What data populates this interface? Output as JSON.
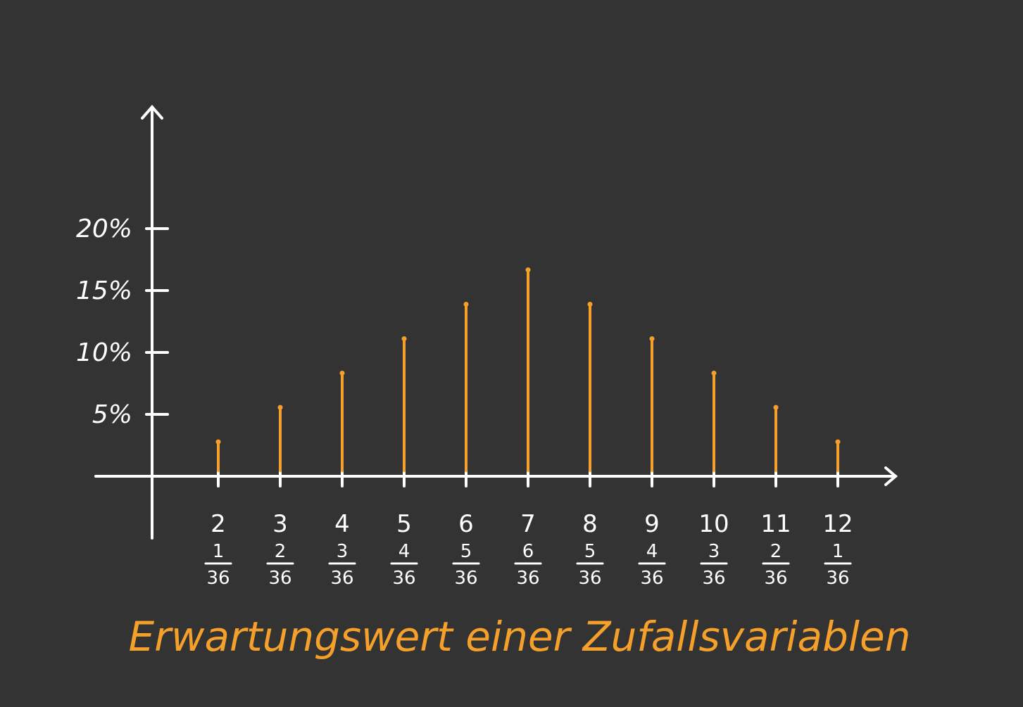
{
  "colors": {
    "background": "#333333",
    "axis": "#ffffff",
    "bar": "#f5a02a",
    "title": "#f5a02a",
    "label": "#ffffff"
  },
  "chart_data": {
    "type": "bar",
    "title": "Erwartungswert einer Zufallsvariablen",
    "xlabel": "",
    "ylabel": "",
    "categories": [
      "2",
      "3",
      "4",
      "5",
      "6",
      "7",
      "8",
      "9",
      "10",
      "11",
      "12"
    ],
    "probabilities": [
      {
        "num": "1",
        "den": "36"
      },
      {
        "num": "2",
        "den": "36"
      },
      {
        "num": "3",
        "den": "36"
      },
      {
        "num": "4",
        "den": "36"
      },
      {
        "num": "5",
        "den": "36"
      },
      {
        "num": "6",
        "den": "36"
      },
      {
        "num": "5",
        "den": "36"
      },
      {
        "num": "4",
        "den": "36"
      },
      {
        "num": "3",
        "den": "36"
      },
      {
        "num": "2",
        "den": "36"
      },
      {
        "num": "1",
        "den": "36"
      }
    ],
    "values": [
      2.78,
      5.56,
      8.33,
      11.11,
      13.89,
      16.67,
      13.89,
      11.11,
      8.33,
      5.56,
      2.78
    ],
    "yticks": [
      5,
      10,
      15,
      20
    ],
    "ytick_labels": [
      "5%",
      "10%",
      "15%",
      "20%"
    ],
    "ylim": [
      0,
      20
    ],
    "grid": false,
    "legend": "none"
  }
}
